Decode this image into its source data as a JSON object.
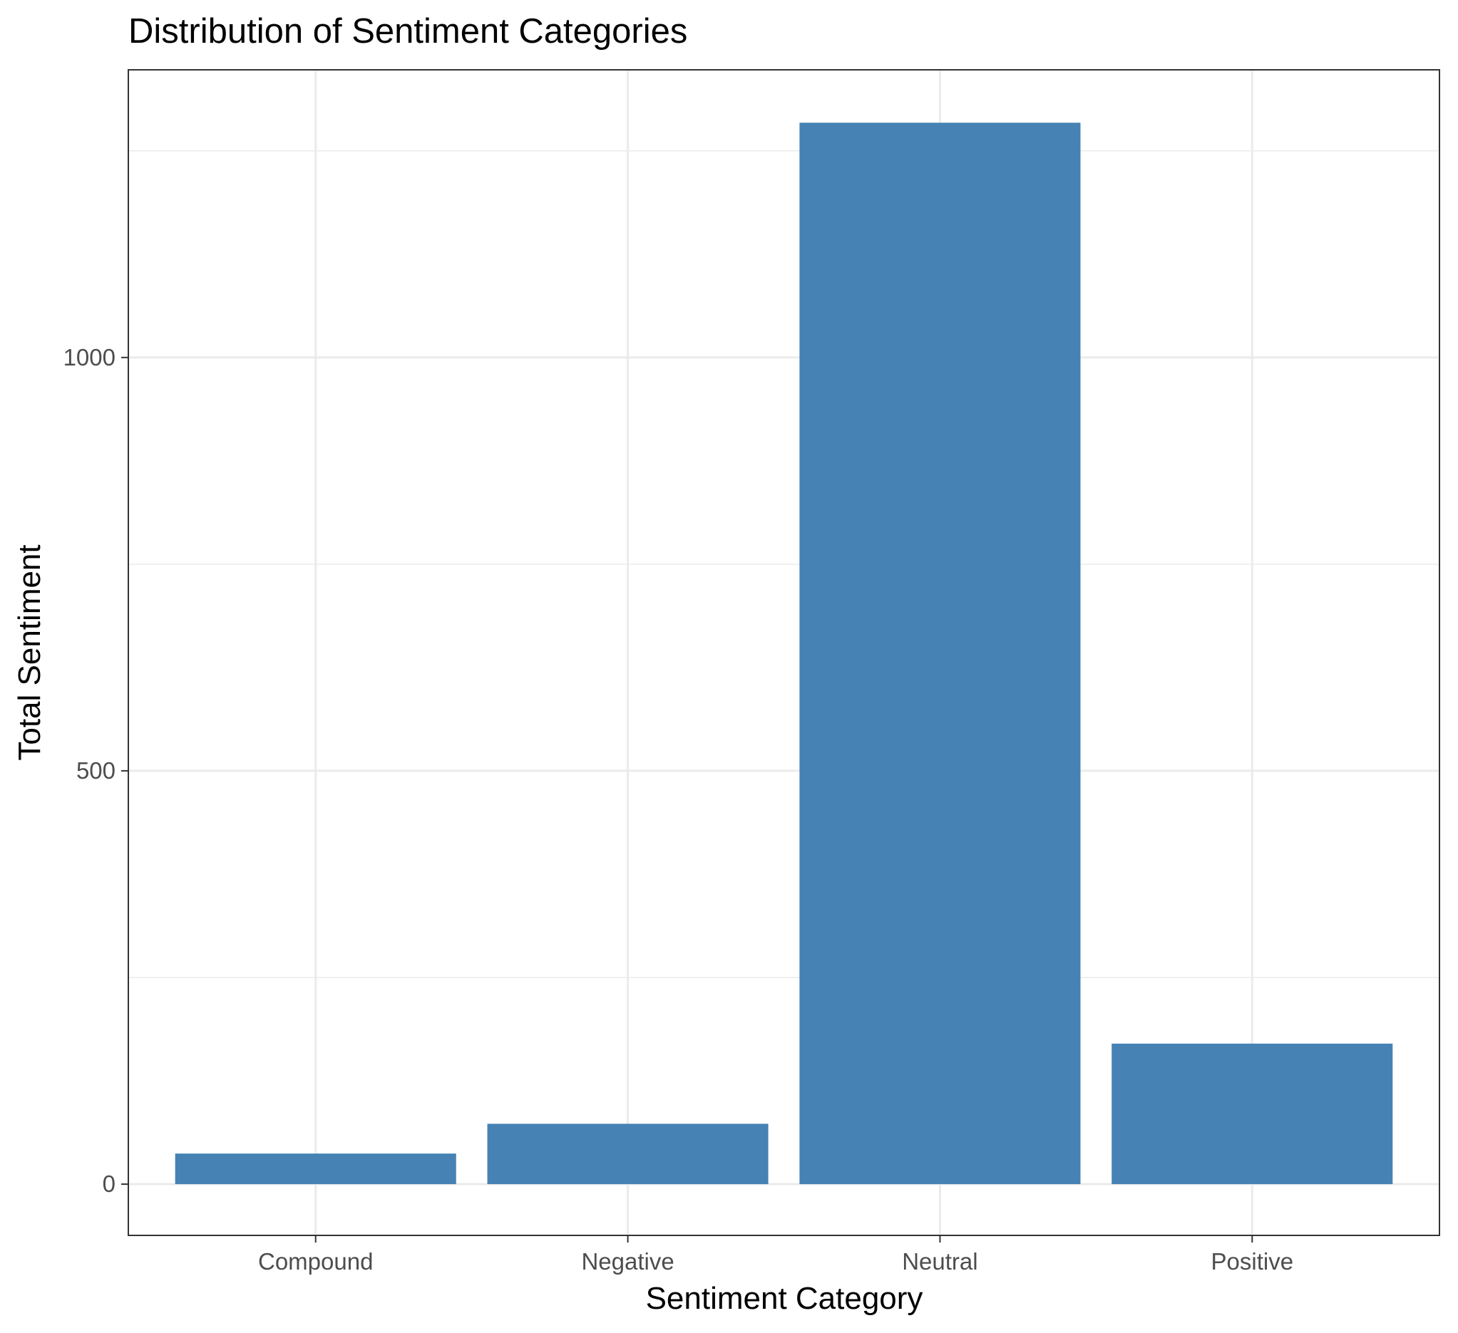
{
  "chart_data": {
    "type": "bar",
    "title": "Distribution of Sentiment Categories",
    "xlabel": "Sentiment Category",
    "ylabel": "Total Sentiment",
    "categories": [
      "Compound",
      "Negative",
      "Neutral",
      "Positive"
    ],
    "values": [
      37,
      73,
      1284,
      170
    ],
    "ylim": [
      -62,
      1348
    ],
    "yticks": [
      0,
      500,
      1000
    ],
    "ytick_labels": [
      "0",
      "500",
      "1000"
    ],
    "grid": true,
    "legend": "none",
    "colors": {
      "bar": "#4682b4",
      "grid": "#ebebeb",
      "panel_border": "#333333",
      "tick_label": "#4d4d4d",
      "text": "#000000"
    }
  }
}
